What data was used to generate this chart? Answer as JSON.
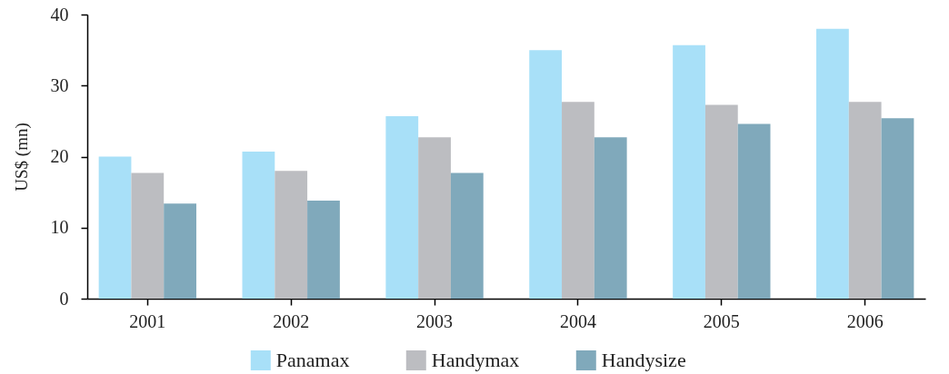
{
  "chart_data": {
    "type": "bar",
    "ylabel": "US$ (mn)",
    "categories": [
      "2001",
      "2002",
      "2003",
      "2004",
      "2005",
      "2006"
    ],
    "series": [
      {
        "name": "Panamax",
        "color": "#a8e0f8",
        "values": [
          20,
          20.7,
          25.7,
          35.0,
          35.7,
          38.0
        ]
      },
      {
        "name": "Handymax",
        "color": "#bcbdc1",
        "values": [
          17.7,
          18.0,
          22.7,
          27.7,
          27.3,
          27.7
        ]
      },
      {
        "name": "Handysize",
        "color": "#80a9bb",
        "values": [
          13.4,
          13.8,
          17.7,
          22.7,
          24.6,
          25.4
        ]
      }
    ],
    "ylim": [
      0,
      40
    ],
    "yticks": [
      0,
      10,
      20,
      30,
      40
    ],
    "grid": false,
    "legend": "bottom"
  }
}
